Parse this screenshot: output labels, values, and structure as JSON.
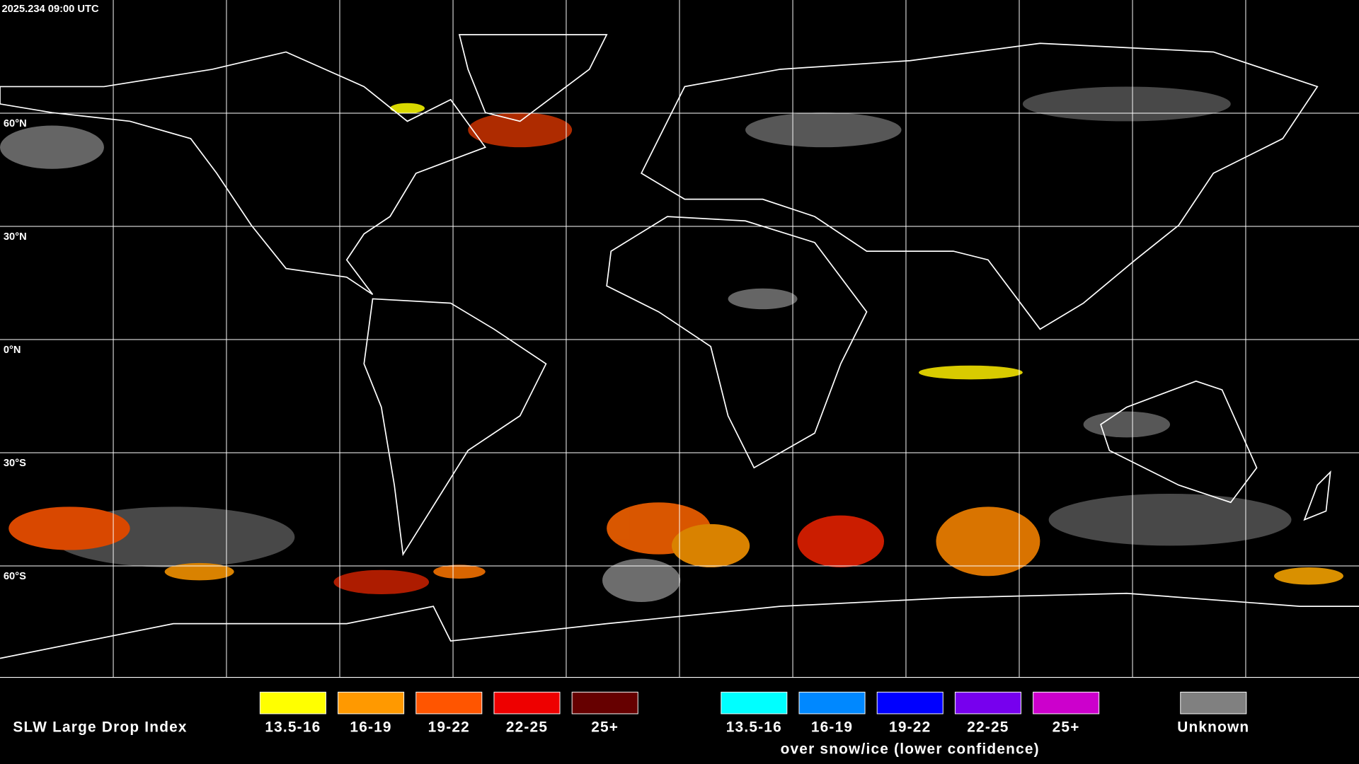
{
  "header": {
    "timestamp": "2025.234 09:00 UTC"
  },
  "map": {
    "latitude_labels": [
      "60°N",
      "30°N",
      "0°N",
      "30°S",
      "60°S"
    ]
  },
  "legend": {
    "title": "SLW Large Drop Index",
    "groups": [
      {
        "items": [
          {
            "label": "13.5-16",
            "color": "#ffff00"
          },
          {
            "label": "16-19",
            "color": "#ff9900"
          },
          {
            "label": "19-22",
            "color": "#ff5500"
          },
          {
            "label": "22-25",
            "color": "#ee0000"
          },
          {
            "label": "25+",
            "color": "#660000"
          }
        ]
      },
      {
        "caption": "over snow/ice (lower confidence)",
        "items": [
          {
            "label": "13.5-16",
            "color": "#00ffff"
          },
          {
            "label": "16-19",
            "color": "#0088ff"
          },
          {
            "label": "19-22",
            "color": "#0000ff"
          },
          {
            "label": "22-25",
            "color": "#7700ee"
          },
          {
            "label": "25+",
            "color": "#cc00cc"
          }
        ]
      },
      {
        "items": [
          {
            "label": "Unknown",
            "color": "#808080"
          }
        ]
      }
    ]
  }
}
